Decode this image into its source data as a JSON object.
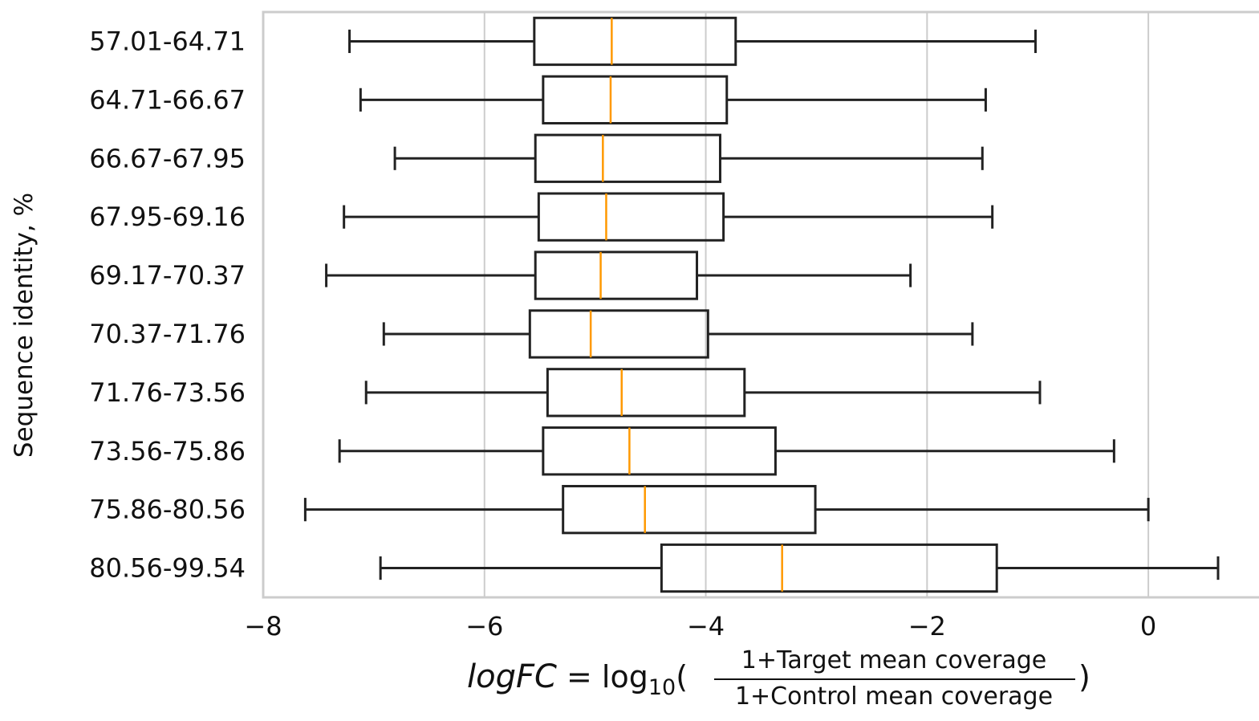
{
  "chart_data": {
    "type": "boxplot",
    "orientation": "horizontal",
    "categories": [
      "57.01-64.71",
      "64.71-66.67",
      "66.67-67.95",
      "67.95-69.16",
      "69.17-70.37",
      "70.37-71.76",
      "71.76-73.56",
      "73.56-75.86",
      "75.86-80.56",
      "80.56-99.54"
    ],
    "boxes": [
      {
        "whislo": -7.22,
        "q1": -5.55,
        "med": -4.85,
        "q3": -3.73,
        "whishi": -1.02
      },
      {
        "whislo": -7.12,
        "q1": -5.47,
        "med": -4.86,
        "q3": -3.81,
        "whishi": -1.47
      },
      {
        "whislo": -6.81,
        "q1": -5.54,
        "med": -4.93,
        "q3": -3.87,
        "whishi": -1.5
      },
      {
        "whislo": -7.27,
        "q1": -5.51,
        "med": -4.9,
        "q3": -3.84,
        "whishi": -1.41
      },
      {
        "whislo": -7.43,
        "q1": -5.54,
        "med": -4.95,
        "q3": -4.08,
        "whishi": -2.15
      },
      {
        "whislo": -6.91,
        "q1": -5.59,
        "med": -5.04,
        "q3": -3.98,
        "whishi": -1.59
      },
      {
        "whislo": -7.07,
        "q1": -5.43,
        "med": -4.76,
        "q3": -3.65,
        "whishi": -0.98
      },
      {
        "whislo": -7.31,
        "q1": -5.47,
        "med": -4.69,
        "q3": -3.37,
        "whishi": -0.31
      },
      {
        "whislo": -7.62,
        "q1": -5.29,
        "med": -4.55,
        "q3": -3.01,
        "whishi": 0.0
      },
      {
        "whislo": -6.94,
        "q1": -4.4,
        "med": -3.31,
        "q3": -1.37,
        "whishi": 0.63
      }
    ],
    "xlim": [
      -8,
      1.0
    ],
    "xticks": [
      -8,
      -6,
      -4,
      -2,
      0
    ],
    "xtick_labels": [
      "−8",
      "−6",
      "−4",
      "−2",
      "0"
    ],
    "xlabel": {
      "lhs": "logFC",
      "equals": " = log",
      "subscript": "10",
      "numerator": "1+Target mean coverage",
      "denominator": "1+Control mean coverage"
    },
    "ylabel": "Sequence identity, %",
    "grid": "vertical",
    "colors": {
      "box": "#222222",
      "median": "#ff9900",
      "grid": "#cccccc",
      "spine": "#cccccc"
    }
  }
}
